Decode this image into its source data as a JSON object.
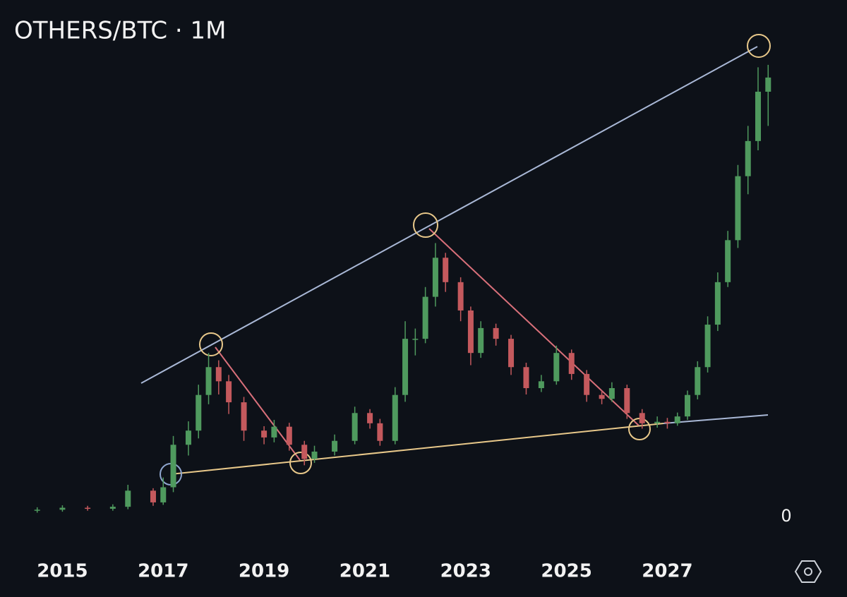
{
  "chart_data": {
    "type": "candlestick",
    "title": "OTHERS/BTC · 1M",
    "x": [
      2014.5,
      2015.0,
      2015.5,
      2016.0,
      2016.3,
      2016.8,
      2017.0,
      2017.2,
      2017.5,
      2017.7,
      2017.9,
      2018.1,
      2018.3,
      2018.6,
      2019.0,
      2019.2,
      2019.5,
      2019.8,
      2020.0,
      2020.4,
      2020.8,
      2021.1,
      2021.3,
      2021.6,
      2021.8,
      2022.0,
      2022.2,
      2022.4,
      2022.6,
      2022.9,
      2023.1,
      2023.3,
      2023.6,
      2023.9,
      2024.2,
      2024.5,
      2024.8,
      2025.1,
      2025.4,
      2025.7,
      2025.9,
      2026.2,
      2026.5,
      2026.8,
      2027.0,
      2027.2,
      2027.4,
      2027.6,
      2027.8,
      2028.0,
      2028.2,
      2028.4,
      2028.6,
      2028.8,
      2029.0
    ],
    "open": [
      1.2,
      1.4,
      1.8,
      1.6,
      2.0,
      5.3,
      2.9,
      6.0,
      14.7,
      17.6,
      24.9,
      30.6,
      27.7,
      23.4,
      17.6,
      16.2,
      18.4,
      14.7,
      11.8,
      13.3,
      15.5,
      21.2,
      19.1,
      15.5,
      24.9,
      36.4,
      36.4,
      45,
      53,
      48,
      42.2,
      33.5,
      38.6,
      36.4,
      30.6,
      26.3,
      27.7,
      33.5,
      29.2,
      24.9,
      24.1,
      26.3,
      21.2,
      19.1,
      19.4,
      19.1,
      20.5,
      24.9,
      30.6,
      39.3,
      48,
      56.6,
      69.7,
      76.9,
      87
    ],
    "high": [
      1.9,
      2.3,
      2.2,
      2.5,
      6.5,
      5.8,
      8.0,
      16.5,
      19.5,
      27,
      33.5,
      32,
      29,
      24.5,
      18.5,
      19.8,
      19.2,
      15.5,
      14.5,
      16.8,
      22.5,
      22,
      20,
      26.5,
      40,
      38.5,
      47,
      56,
      54,
      49,
      43,
      40,
      39.5,
      37.2,
      31.5,
      29,
      35,
      34.2,
      30,
      25.8,
      27.5,
      27,
      22,
      20.5,
      20.2,
      21.3,
      25.8,
      31.8,
      41,
      50,
      58.5,
      72,
      80,
      92,
      92.5
    ],
    "low": [
      0.8,
      1.0,
      1.2,
      1.2,
      1.5,
      2.2,
      2.4,
      5.0,
      12.5,
      16,
      23,
      25,
      21,
      15.5,
      14.8,
      15.2,
      13.5,
      10.5,
      11,
      12.5,
      14.8,
      18,
      14.5,
      14.8,
      23.5,
      33,
      35.5,
      43,
      46,
      40,
      31,
      32.5,
      35,
      29,
      25,
      25.5,
      27,
      28,
      23.5,
      23,
      23.5,
      20,
      18,
      18.2,
      18,
      18.6,
      19.8,
      24,
      29.5,
      38,
      47,
      55,
      66,
      75,
      80
    ],
    "close": [
      1.4,
      1.8,
      1.6,
      2.0,
      5.3,
      2.9,
      6.0,
      14.7,
      17.6,
      24.9,
      30.6,
      27.7,
      23.4,
      17.6,
      16.2,
      18.4,
      14.7,
      11.8,
      13.3,
      15.5,
      21.2,
      19.1,
      15.5,
      24.9,
      36.4,
      36.4,
      45,
      53,
      48,
      42.2,
      33.5,
      38.6,
      36.4,
      30.6,
      26.3,
      27.7,
      33.5,
      29.2,
      24.9,
      24.1,
      26.3,
      21.2,
      19.1,
      19.4,
      19.1,
      20.5,
      24.9,
      30.6,
      39.3,
      48,
      56.6,
      69.7,
      76.9,
      87,
      89.9
    ],
    "up_color": "#4f9a5e",
    "down_color": "#c4595d",
    "xlim": [
      2014,
      2029.5
    ],
    "xticks": [
      2015,
      2017,
      2019,
      2021,
      2023,
      2025,
      2027
    ],
    "ylim": [
      0,
      100
    ],
    "yticks": [
      0
    ]
  }
}
